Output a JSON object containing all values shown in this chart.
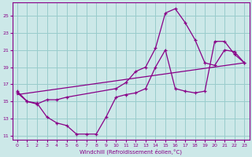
{
  "xlabel": "Windchill (Refroidissement éolien,°C)",
  "bg_color": "#cce8e8",
  "grid_color": "#99cccc",
  "line_color": "#880088",
  "xlim": [
    -0.5,
    23.5
  ],
  "ylim": [
    10.5,
    26.5
  ],
  "xticks": [
    0,
    1,
    2,
    3,
    4,
    5,
    6,
    7,
    8,
    9,
    10,
    11,
    12,
    13,
    14,
    15,
    16,
    17,
    18,
    19,
    20,
    21,
    22,
    23
  ],
  "yticks": [
    11,
    13,
    15,
    17,
    19,
    21,
    23,
    25
  ],
  "series": [
    {
      "x": [
        0,
        1,
        2,
        3,
        4,
        5,
        10,
        11,
        12,
        13,
        14,
        15,
        16,
        17,
        18,
        19,
        20,
        21,
        22,
        23
      ],
      "y": [
        16.0,
        15.0,
        14.7,
        15.2,
        15.2,
        15.5,
        16.5,
        17.2,
        18.5,
        19.0,
        21.2,
        25.3,
        25.8,
        24.2,
        22.2,
        19.5,
        19.2,
        21.0,
        20.8,
        19.5
      ],
      "marker": true
    },
    {
      "x": [
        0,
        1,
        2,
        3,
        4,
        5,
        6,
        7,
        8,
        9,
        10,
        11,
        12,
        13,
        14,
        15,
        16,
        17,
        18,
        19,
        20,
        21,
        22,
        23
      ],
      "y": [
        16.2,
        15.0,
        14.8,
        13.2,
        12.5,
        12.2,
        11.2,
        11.2,
        11.2,
        13.2,
        15.5,
        15.8,
        16.0,
        16.5,
        19.0,
        21.0,
        16.5,
        16.2,
        16.0,
        16.2,
        22.0,
        22.0,
        20.5,
        19.5
      ],
      "marker": true
    },
    {
      "x": [
        0,
        23
      ],
      "y": [
        15.8,
        19.5
      ],
      "marker": false
    }
  ]
}
